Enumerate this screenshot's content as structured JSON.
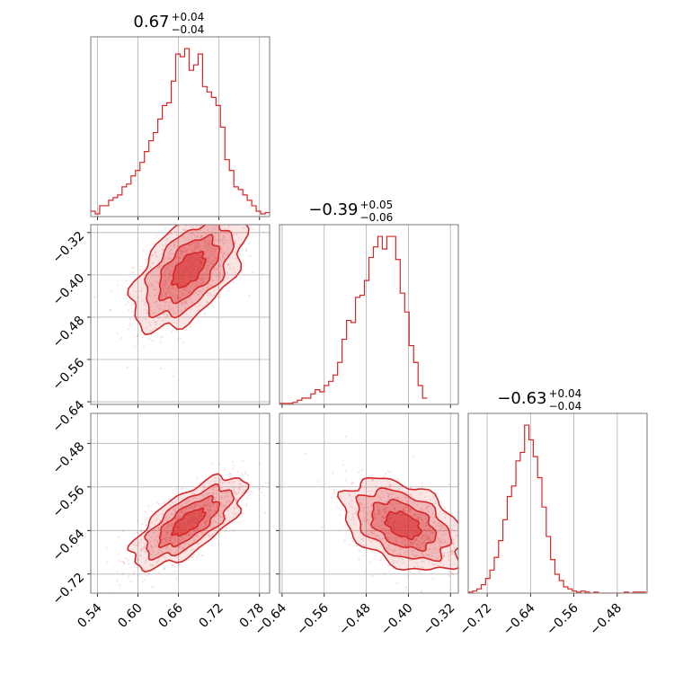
{
  "chart_data": {
    "type": "corner",
    "color": "#d62728",
    "panels": [
      {
        "id": "hist-p1",
        "type": "histogram",
        "title": {
          "median": "0.67",
          "plus": "+0.04",
          "minus": "−0.04"
        },
        "xlim": [
          0.53,
          0.795
        ],
        "xticks": [
          0.54,
          0.6,
          0.66,
          0.72,
          0.78
        ],
        "bins": {
          "start": 0.53,
          "width": 0.006625,
          "counts": [
            4,
            2,
            8,
            8,
            12,
            14,
            16,
            22,
            24,
            30,
            34,
            40,
            48,
            56,
            62,
            72,
            82,
            84,
            100,
            120,
            118,
            124,
            108,
            112,
            120,
            96,
            92,
            88,
            82,
            66,
            42,
            34,
            22,
            20,
            16,
            12,
            8,
            4,
            2,
            3
          ]
        }
      },
      {
        "id": "hist-p2",
        "type": "histogram",
        "title": {
          "median": "−0.39",
          "plus": "+0.05",
          "minus": "−0.06"
        },
        "xlim": [
          -0.645,
          -0.305
        ],
        "xticks": [
          -0.64,
          -0.56,
          -0.48,
          -0.4,
          -0.32
        ],
        "bins": {
          "start": -0.645,
          "width": 0.0085,
          "counts": [
            1,
            1,
            1,
            2,
            4,
            6,
            6,
            10,
            14,
            12,
            18,
            22,
            28,
            40,
            62,
            80,
            78,
            102,
            104,
            118,
            140,
            150,
            160,
            148,
            160,
            160,
            138,
            106,
            88,
            56,
            40,
            18,
            6
          ]
        }
      },
      {
        "id": "hist-p3",
        "type": "histogram",
        "title": {
          "median": "−0.63",
          "plus": "+0.04",
          "minus": "−0.04"
        },
        "xlim": [
          -0.755,
          -0.425
        ],
        "xticks": [
          -0.72,
          -0.64,
          -0.56,
          -0.48
        ],
        "bins": {
          "start": -0.755,
          "width": 0.008,
          "counts": [
            1,
            2,
            4,
            8,
            14,
            22,
            34,
            50,
            70,
            92,
            102,
            126,
            134,
            160,
            146,
            130,
            110,
            82,
            54,
            32,
            18,
            12,
            6,
            4,
            2,
            1,
            2,
            1,
            0,
            1,
            0,
            0,
            0,
            0,
            0,
            0,
            1,
            0,
            1,
            1,
            1
          ]
        }
      },
      {
        "id": "joint-p1-p2",
        "type": "contour",
        "xlim": [
          0.53,
          0.795
        ],
        "ylim": [
          -0.645,
          -0.305
        ],
        "xticks": [
          0.54,
          0.6,
          0.66,
          0.72,
          0.78
        ],
        "yticks": [
          -0.64,
          -0.56,
          -0.48,
          -0.4,
          -0.32
        ],
        "center": [
          0.675,
          -0.39
        ],
        "sigma": [
          0.04,
          0.055
        ],
        "rho": 0.55
      },
      {
        "id": "joint-p1-p3",
        "type": "contour",
        "xlim": [
          0.53,
          0.795
        ],
        "ylim": [
          -0.755,
          -0.425
        ],
        "xticks": [
          0.54,
          0.6,
          0.66,
          0.72,
          0.78
        ],
        "yticks": [
          -0.72,
          -0.64,
          -0.56,
          -0.48
        ],
        "center": [
          0.675,
          -0.625
        ],
        "sigma": [
          0.04,
          0.04
        ],
        "rho": 0.7
      },
      {
        "id": "joint-p2-p3",
        "type": "contour",
        "xlim": [
          -0.645,
          -0.305
        ],
        "ylim": [
          -0.755,
          -0.425
        ],
        "xticks": [
          -0.64,
          -0.56,
          -0.48,
          -0.4,
          -0.32
        ],
        "yticks": [
          -0.72,
          -0.64,
          -0.56,
          -0.48
        ],
        "center": [
          -0.41,
          -0.63
        ],
        "sigma": [
          0.055,
          0.04
        ],
        "rho": -0.4
      }
    ]
  }
}
